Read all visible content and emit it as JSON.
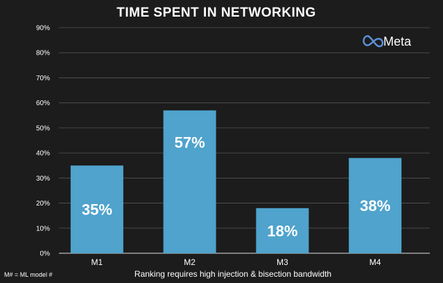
{
  "chart_data": {
    "type": "bar",
    "title": "TIME SPENT IN NETWORKING",
    "categories": [
      "M1",
      "M2",
      "M3",
      "M4"
    ],
    "values": [
      35,
      57,
      18,
      38
    ],
    "value_labels": [
      "35%",
      "57%",
      "18%",
      "38%"
    ],
    "yticks": [
      "0%",
      "10%",
      "20%",
      "30%",
      "40%",
      "50%",
      "60%",
      "70%",
      "80%",
      "90%"
    ],
    "ylim": [
      0,
      90
    ],
    "grid": true,
    "xlabel": "",
    "ylabel": ""
  },
  "brand": {
    "name": "Meta",
    "logo_icon": "meta-infinity-logo"
  },
  "footnote": "M# = ML model #",
  "caption": "Ranking requires high injection & bisection bandwidth",
  "colors": {
    "background": "#1c1c1c",
    "bar": "#4fa3cc",
    "grid": "#555555",
    "logo": "#5b8fd6"
  }
}
